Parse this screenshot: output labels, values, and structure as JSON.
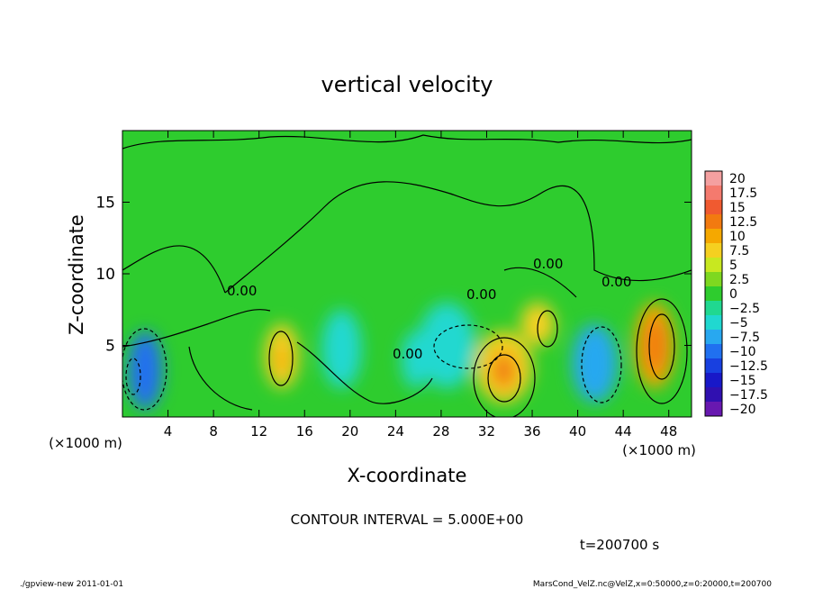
{
  "chart_data": {
    "type": "heatmap",
    "title": "vertical velocity",
    "xlabel": "X-coordinate",
    "ylabel": "Z-coordinate",
    "x_unit": "(×1000 m)",
    "y_unit": "(×1000 m)",
    "xlim": [
      0,
      50
    ],
    "ylim": [
      0,
      20
    ],
    "x_ticks": [
      "4",
      "8",
      "12",
      "16",
      "20",
      "24",
      "28",
      "32",
      "36",
      "40",
      "44",
      "48"
    ],
    "y_ticks": [
      "5",
      "10",
      "15"
    ],
    "contour_interval_text": "CONTOUR INTERVAL = 5.000E+00",
    "time_text": "t=200700 s",
    "contour_label": "0.00",
    "colorbar": {
      "labels": [
        "20",
        "17.5",
        "15",
        "12.5",
        "10",
        "7.5",
        "5",
        "2.5",
        "0",
        "−2.5",
        "−5",
        "−7.5",
        "−10",
        "−12.5",
        "−15",
        "−17.5",
        "−20"
      ],
      "colors": [
        "#f4a0a0",
        "#f47a6e",
        "#f05a30",
        "#f27a10",
        "#f5a800",
        "#f5d020",
        "#c8e820",
        "#7ed820",
        "#2ecc2e",
        "#20d890",
        "#20d8d0",
        "#28a8f0",
        "#2070f0",
        "#1840e0",
        "#1818c8",
        "#3010b0",
        "#6818b0"
      ]
    },
    "cells": [
      {
        "x0": 0.5,
        "x1": 3.5,
        "z0": 0.5,
        "z1": 6,
        "value": -9
      },
      {
        "x0": 1,
        "x1": 3,
        "z0": 2,
        "z1": 5,
        "value": -11
      },
      {
        "x0": 12.5,
        "x1": 15.5,
        "z0": 2,
        "z1": 6.5,
        "value": 8
      },
      {
        "x0": 13.5,
        "x1": 14.5,
        "z0": 3,
        "z1": 5,
        "value": 11
      },
      {
        "x0": 17.5,
        "x1": 21,
        "z0": 2,
        "z1": 7.5,
        "value": -4
      },
      {
        "x0": 24.5,
        "x1": 27,
        "z0": 2,
        "z1": 6,
        "value": -4
      },
      {
        "x0": 26,
        "x1": 31,
        "z0": 2,
        "z1": 8,
        "value": -6
      },
      {
        "x0": 31,
        "x1": 36,
        "z0": 1,
        "z1": 6,
        "value": 8
      },
      {
        "x0": 32.5,
        "x1": 34.5,
        "z0": 2,
        "z1": 4.5,
        "value": 12
      },
      {
        "x0": 35,
        "x1": 38,
        "z0": 5,
        "z1": 8,
        "value": 7
      },
      {
        "x0": 39.5,
        "x1": 43.5,
        "z0": 1,
        "z1": 6.5,
        "value": -8
      },
      {
        "x0": 45,
        "x1": 48.5,
        "z0": 2,
        "z1": 8,
        "value": 9
      },
      {
        "x0": 45.8,
        "x1": 47.8,
        "z0": 3,
        "z1": 7,
        "value": 13
      }
    ]
  },
  "footer": {
    "left": "./gpview-new   2011-01-01",
    "right": "MarsCond_VelZ.nc@VelZ,x=0:50000,z=0:20000,t=200700"
  }
}
